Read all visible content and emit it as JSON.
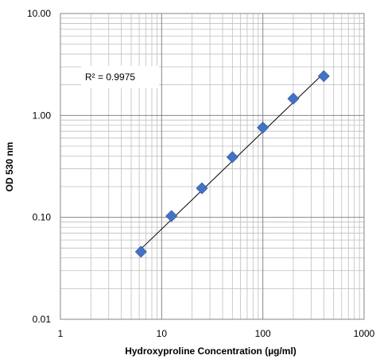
{
  "chart_data": {
    "type": "scatter",
    "x_scale": "log",
    "y_scale": "log",
    "xlim": [
      1,
      1000
    ],
    "ylim": [
      0.01,
      10
    ],
    "grid": true,
    "xlabel": "Hydroxyproline Concentration (µg/ml)",
    "ylabel": "OD 530 nm",
    "x_tick_labels": [
      "1",
      "10",
      "100",
      "1000"
    ],
    "y_tick_labels": [
      "0.01",
      "0.10",
      "1.00",
      "10.00"
    ],
    "series": [
      {
        "x": [
          6.25,
          12.5,
          25,
          50,
          100,
          200,
          400
        ],
        "y": [
          0.046,
          0.103,
          0.193,
          0.39,
          0.76,
          1.46,
          2.43
        ],
        "marker": "diamond",
        "color": "#4472C4"
      }
    ],
    "trendline": {
      "type": "power",
      "x_range": [
        6.25,
        400
      ],
      "y_range": [
        0.049,
        2.6
      ],
      "color": "#000000"
    },
    "annotation": "R² = 0.9975"
  }
}
